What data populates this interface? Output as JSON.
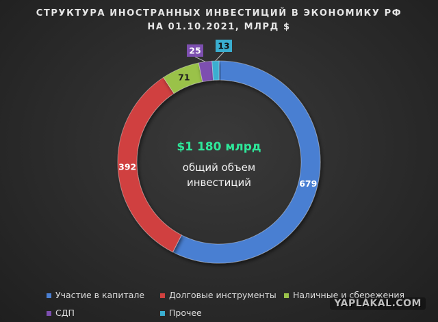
{
  "title_line1": "СТРУКТУРА ИНОСТРАННЫХ ИНВЕСТИЦИЙ В ЭКОНОМИКУ РФ",
  "title_line2": "НА 01.10.2021, МЛРД $",
  "center_total": "$1 180 млрд",
  "center_caption_line1": "общий объем",
  "center_caption_line2": "инвестиций",
  "watermark": "YAPLAKAL.COM",
  "chart_data": {
    "type": "pie",
    "title": "СТРУКТУРА ИНОСТРАННЫХ ИНВЕСТИЦИЙ В ЭКОНОМИКУ РФ НА 01.10.2021, МЛРД $",
    "donut": true,
    "legend_position": "bottom",
    "categories": [
      "Участие в капитале",
      "Долговые инструменты",
      "Наличные и сбережения",
      "СДП",
      "Прочее"
    ],
    "values": [
      679,
      392,
      71,
      25,
      13
    ],
    "colors": [
      "#4a7fd2",
      "#d0413f",
      "#9ac24a",
      "#7d4fb0",
      "#3aaed0"
    ]
  }
}
